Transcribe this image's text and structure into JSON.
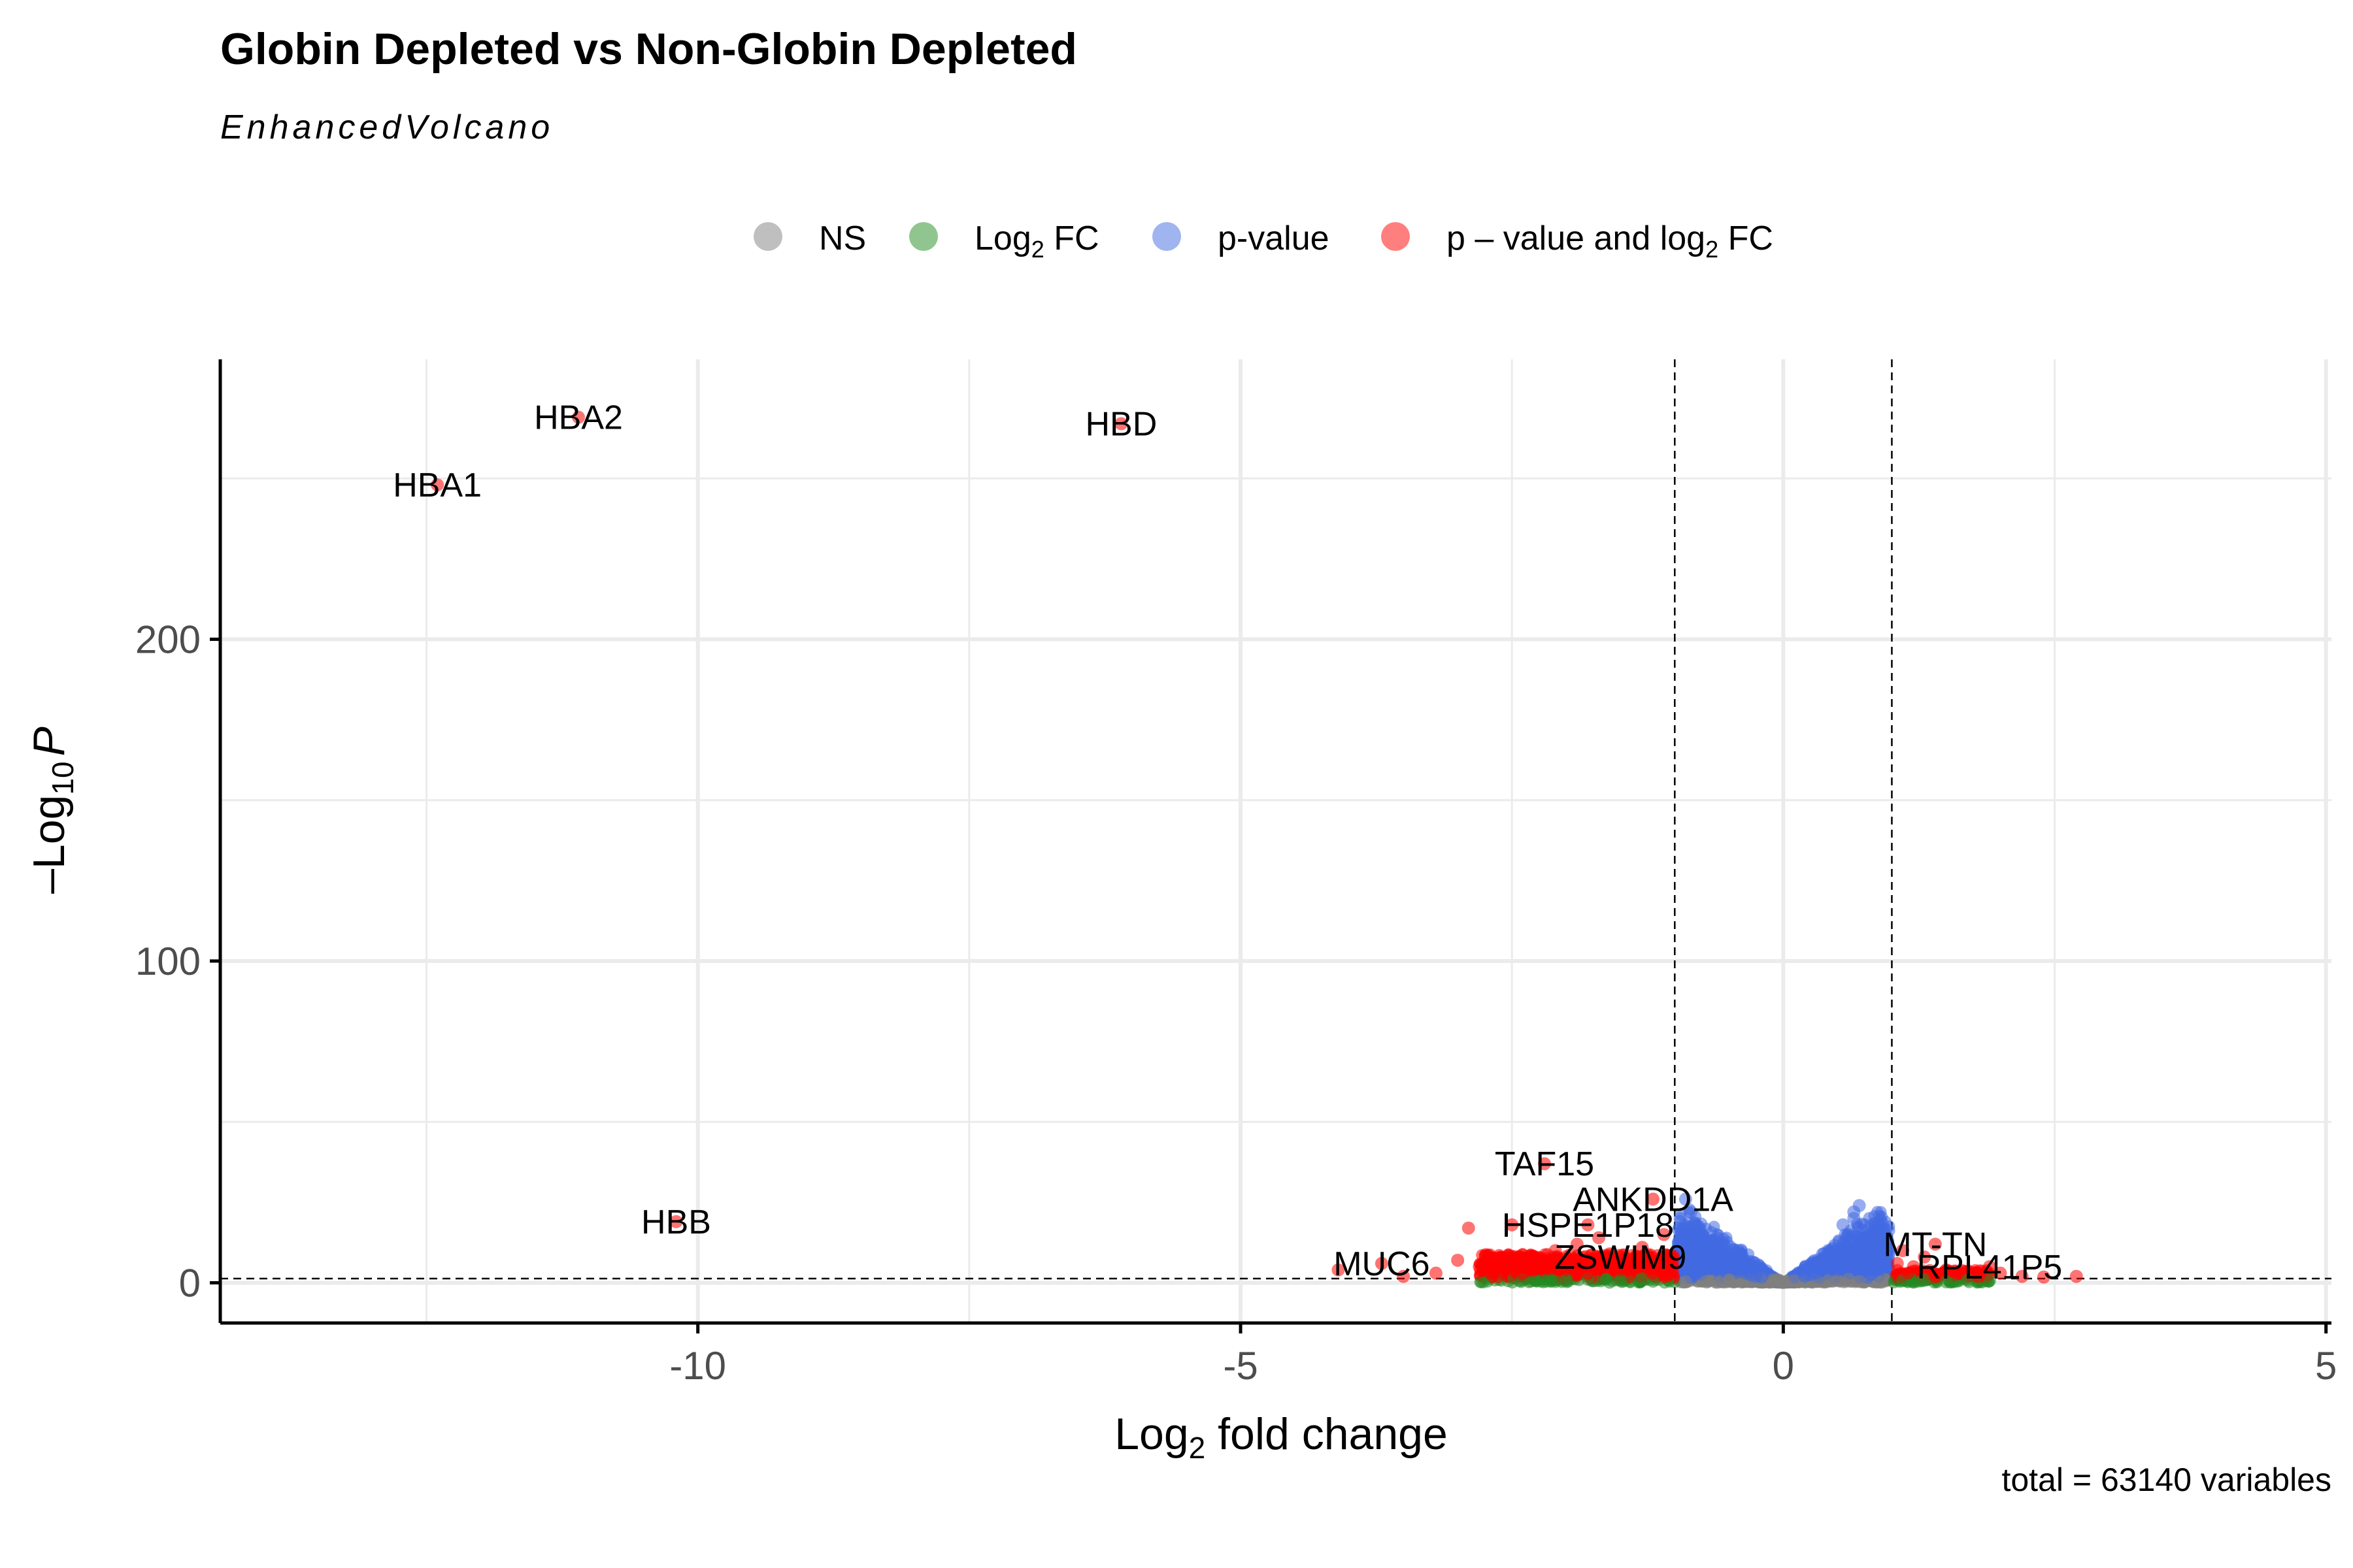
{
  "chart_data": {
    "type": "scatter",
    "title": "Globin Depleted vs Non-Globin Depleted",
    "subtitle": "EnhancedVolcano",
    "xlabel": {
      "main": "Log",
      "sub": "2",
      "rest": " fold change"
    },
    "ylabel": {
      "prefix": "–Log",
      "sub": "10",
      "var": "P"
    },
    "caption": "total = 63140 variables",
    "xlim": [
      -14.4,
      5.05
    ],
    "ylim": [
      -12.5,
      287
    ],
    "x_ticks": [
      -10,
      -5,
      0,
      5
    ],
    "x_tick_labels": [
      "-10",
      "-5",
      "0",
      "5"
    ],
    "y_ticks": [
      0,
      100,
      200
    ],
    "y_tick_labels": [
      "0",
      "100",
      "200"
    ],
    "grid": true,
    "fc_cutoff": [
      -1,
      1
    ],
    "p_cutoff_neglog10": 1.3,
    "legend": {
      "placement": "top",
      "items": [
        {
          "key": "ns",
          "label": "NS",
          "color": "#808080"
        },
        {
          "key": "fc",
          "label_main": "Log",
          "label_sub": "2",
          "label_rest": " FC",
          "color": "#228B22"
        },
        {
          "key": "p",
          "label": "p-value",
          "color": "#4169E1"
        },
        {
          "key": "both",
          "label_main": "p – value and log",
          "label_sub": "2",
          "label_rest": " FC",
          "color": "#FF0000"
        }
      ]
    },
    "labeled_points": [
      {
        "label": "HBA2",
        "x": -11.1,
        "y": 269
      },
      {
        "label": "HBD",
        "x": -6.1,
        "y": 267
      },
      {
        "label": "HBA1",
        "x": -12.4,
        "y": 248
      },
      {
        "label": "HBB",
        "x": -10.2,
        "y": 19
      },
      {
        "label": "TAF15",
        "x": -2.2,
        "y": 37
      },
      {
        "label": "ANKDD1A",
        "x": -1.2,
        "y": 26
      },
      {
        "label": "HSPE1P18",
        "x": -1.8,
        "y": 18
      },
      {
        "label": "ZSWIM9",
        "x": -1.5,
        "y": 8
      },
      {
        "label": "MUC6",
        "x": -3.7,
        "y": 6
      },
      {
        "label": "MT-TN",
        "x": 1.4,
        "y": 12
      },
      {
        "label": "RPL41P5",
        "x": 1.9,
        "y": 5
      }
    ],
    "series": [
      {
        "name": "NS",
        "color": "#808080",
        "points": [
          [
            -0.9,
            0.3
          ],
          [
            -0.7,
            0.5
          ],
          [
            -0.5,
            0.8
          ],
          [
            -0.3,
            1.0
          ],
          [
            -0.1,
            0.4
          ],
          [
            0.0,
            0.1
          ],
          [
            0.1,
            0.6
          ],
          [
            0.3,
            0.9
          ],
          [
            0.5,
            0.7
          ],
          [
            0.7,
            0.4
          ],
          [
            0.9,
            0.2
          ],
          [
            -0.6,
            0.2
          ],
          [
            0.6,
            1.1
          ],
          [
            -0.2,
            1.2
          ],
          [
            0.2,
            0.3
          ]
        ]
      },
      {
        "name": "Log2 FC",
        "color": "#228B22",
        "points": [
          [
            -1.2,
            0.5
          ],
          [
            -1.5,
            0.8
          ],
          [
            -1.8,
            1.1
          ],
          [
            -2.1,
            0.4
          ],
          [
            -2.4,
            0.9
          ],
          [
            -1.3,
            1.2
          ],
          [
            -1.6,
            0.2
          ],
          [
            -2.0,
            1.0
          ],
          [
            1.1,
            0.6
          ],
          [
            1.3,
            1.0
          ],
          [
            1.5,
            0.3
          ],
          [
            1.7,
            0.9
          ],
          [
            1.2,
            0.2
          ],
          [
            1.9,
            0.7
          ]
        ]
      },
      {
        "name": "p-value",
        "color": "#4169E1",
        "points": [
          [
            -0.95,
            20
          ],
          [
            -0.9,
            26
          ],
          [
            -0.85,
            22
          ],
          [
            -0.8,
            18
          ],
          [
            -0.75,
            15
          ],
          [
            -0.7,
            12
          ],
          [
            -0.65,
            10
          ],
          [
            -0.6,
            8
          ],
          [
            -0.55,
            7
          ],
          [
            -0.5,
            6
          ],
          [
            -0.45,
            5
          ],
          [
            -0.4,
            4
          ],
          [
            -0.35,
            3
          ],
          [
            -0.3,
            2.5
          ],
          [
            -0.25,
            2
          ],
          [
            -0.2,
            1.8
          ],
          [
            -0.9,
            15
          ],
          [
            -0.85,
            12
          ],
          [
            -0.8,
            10
          ],
          [
            -0.7,
            6
          ],
          [
            -0.6,
            4
          ],
          [
            0.2,
            2
          ],
          [
            0.25,
            2.5
          ],
          [
            0.3,
            3
          ],
          [
            0.35,
            4
          ],
          [
            0.4,
            5
          ],
          [
            0.45,
            6
          ],
          [
            0.5,
            8
          ],
          [
            0.55,
            10
          ],
          [
            0.6,
            15
          ],
          [
            0.65,
            20
          ],
          [
            0.7,
            24
          ],
          [
            0.75,
            18
          ],
          [
            0.8,
            14
          ],
          [
            0.85,
            10
          ],
          [
            0.9,
            12
          ],
          [
            0.95,
            8
          ],
          [
            0.5,
            4
          ],
          [
            0.6,
            6
          ],
          [
            0.7,
            10
          ],
          [
            0.8,
            6
          ],
          [
            0.65,
            22
          ],
          [
            0.55,
            18
          ]
        ]
      },
      {
        "name": "p-value and log2 FC",
        "color": "#FF0000",
        "points": [
          [
            -11.1,
            269
          ],
          [
            -6.1,
            267
          ],
          [
            -12.4,
            248
          ],
          [
            -10.2,
            19
          ],
          [
            -2.2,
            37
          ],
          [
            -1.2,
            26
          ],
          [
            -1.8,
            18
          ],
          [
            -1.5,
            8
          ],
          [
            -3.7,
            6
          ],
          [
            1.4,
            12
          ],
          [
            1.9,
            5
          ],
          [
            -2.9,
            17
          ],
          [
            -2.5,
            18
          ],
          [
            -4.1,
            4
          ],
          [
            -3.2,
            3
          ],
          [
            -2.8,
            5
          ],
          [
            -2.6,
            8
          ],
          [
            -2.3,
            6
          ],
          [
            -2.1,
            10
          ],
          [
            -1.9,
            12
          ],
          [
            -1.7,
            14
          ],
          [
            -1.6,
            9
          ],
          [
            -1.4,
            7
          ],
          [
            -1.3,
            11
          ],
          [
            -1.1,
            15
          ],
          [
            -1.05,
            6
          ],
          [
            -2.4,
            3
          ],
          [
            -2.0,
            4
          ],
          [
            -1.8,
            3
          ],
          [
            -1.5,
            4
          ],
          [
            -1.2,
            3
          ],
          [
            -3.5,
            2
          ],
          [
            -3.0,
            7
          ],
          [
            -2.7,
            3
          ],
          [
            1.05,
            6
          ],
          [
            1.1,
            10
          ],
          [
            1.2,
            5
          ],
          [
            1.3,
            8
          ],
          [
            1.5,
            4
          ],
          [
            1.6,
            3
          ],
          [
            1.8,
            2
          ],
          [
            2.0,
            3
          ],
          [
            2.2,
            2
          ],
          [
            2.4,
            1.8
          ],
          [
            2.7,
            2
          ],
          [
            1.15,
            3
          ],
          [
            1.4,
            2
          ]
        ]
      }
    ]
  }
}
